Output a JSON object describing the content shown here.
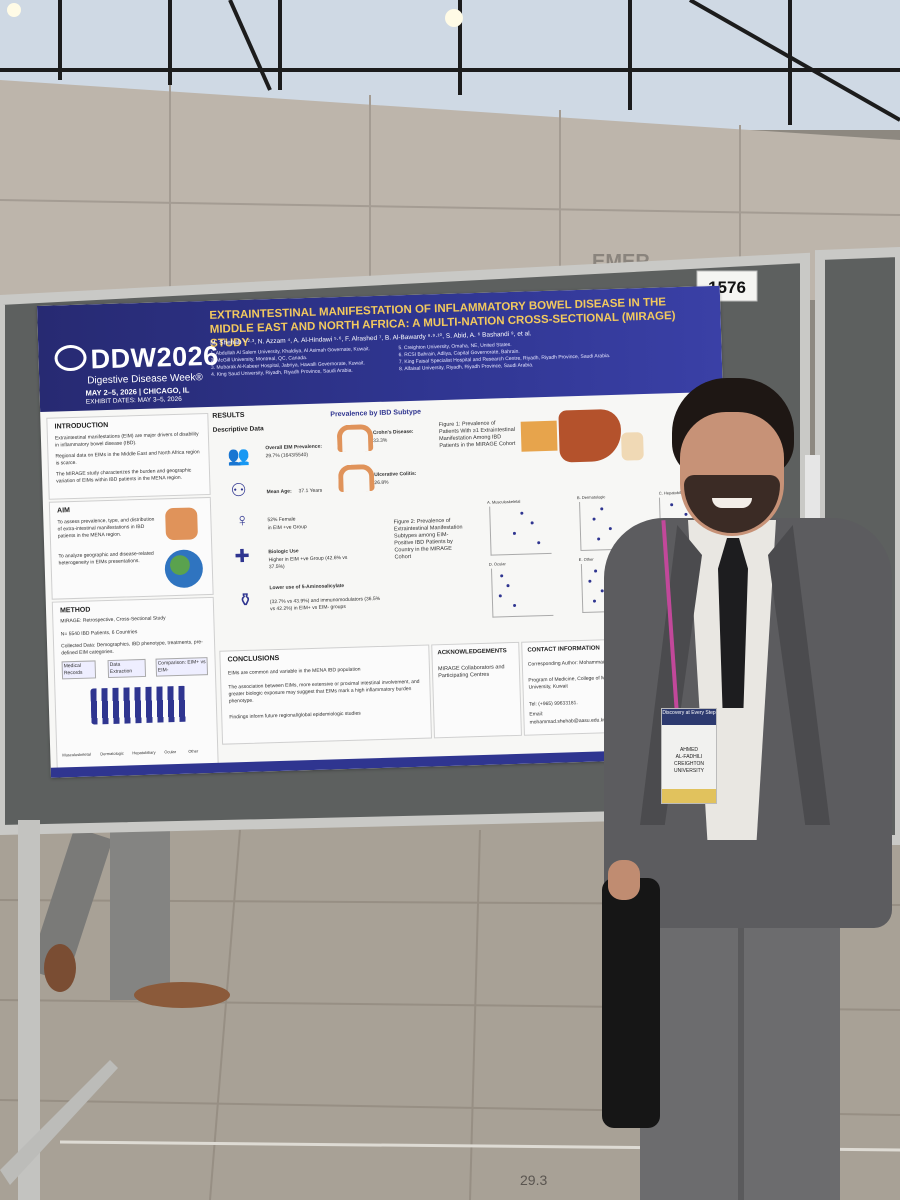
{
  "booth_number": "1576",
  "background_sign_fragment": "EMER",
  "floor_marking": "29.3",
  "badge": {
    "top": "Discovery at Every Step",
    "name": "AHMED",
    "line2": "AL-FADHILI",
    "org": "CREIGHTON UNIVERSITY"
  },
  "poster": {
    "logo_main": "DDW2026",
    "logo_sub": "Digestive Disease Week®",
    "conference_dates": "MAY 2–5, 2026 | CHICAGO, IL",
    "exhibit_dates": "EXHIBIT DATES: MAY 3–5, 2026",
    "title": "EXTRAINTESTINAL MANIFESTATION OF INFLAMMATORY BOWEL DISEASE IN THE MIDDLE EAST AND NORTH AFRICA: A MULTI-NATION CROSS-SECTIONAL (MIRAGE) STUDY",
    "authors": "M. Shehab ¹·²·³, N. Azzam ⁴, A. Al-Hindawi ⁵·⁶, F. Alrashed ⁷, B. Al-Bawardy ⁸·⁹·¹⁰, S. Abid, A. ⁶ Bashandi ⁹, et al.",
    "affiliations_left": "1. Abdullah Al Salem University, Khaldiya, Al Asimah Governate, Kuwait.\n2. McGill University, Montreal, QC, Canada.\n3. Mubarak Al-Kabeer Hospital, Jabriya, Hawalli Governorate, Kuwait.\n4. King Saud University, Riyadh, Riyadh Province, Saudi Arabia.",
    "affiliations_right": "5. Creighton University, Omaha, NE, United States.\n6. RCSI Bahrain, Adliya, Capital Governorate, Bahrain.\n7. King Faisal Specialist Hospital and Research Centre, Riyadh, Riyadh Province, Saudi Arabia.\n8. Alfaisal University, Riyadh, Riyadh Province, Saudi Arabia.",
    "introduction": {
      "heading": "INTRODUCTION",
      "bullets": [
        "Extraintestinal manifestations (EIM) are major drivers of disability in inflammatory bowel disease (IBD).",
        "Regional data on EIMs in the Middle East and North Africa region is scarce.",
        "The MIRAGE study characterizes the burden and geographic variation of EIMs within IBD patients in the MENA region."
      ]
    },
    "aim": {
      "heading": "AIM",
      "bullets": [
        "To assess prevalence, type, and distribution of extra-intestinal manifestations in IBD patients in the MENA region.",
        "To analyze geographic and disease-related heterogeneity in EIMs presentations."
      ]
    },
    "method": {
      "heading": "METHOD",
      "lines": [
        "MIRAGE: Retrospective, Cross-Sectional Study",
        "N= 5540 IBD Patients, 6 Countries",
        "Collected Data: Demographics, IBD phenotype, treatments, pre-defined EIM categories."
      ],
      "flow": [
        "Medical Records",
        "Data Extraction",
        "Comparison: EIM+ vs EIM-"
      ],
      "categories": [
        "Musculoskeletal",
        "Dermatologic",
        "Hepatobiliary",
        "Ocular",
        "Other"
      ]
    },
    "results": {
      "heading": "RESULTS",
      "descriptive_heading": "Descriptive Data",
      "items": [
        {
          "label": "Overall EIM Prevalence:",
          "value": "29.7% (1643/5540)"
        },
        {
          "label": "Mean Age:",
          "value": "37.1 Years"
        },
        {
          "label": "52% Female",
          "value": "in EIM +ve Group"
        },
        {
          "label": "Biologic Use",
          "value": "Higher in EIM +ve Group (42.6% vs 37.5%)"
        },
        {
          "label": "Lower use of 5-Aminosalicylate",
          "value": "(32.7% vs 43.9%) and immunomodulators (36.5% vs 42.2%) in EIM+ vs EIM- groups"
        }
      ],
      "subtype_heading": "Prevalence by IBD Subtype",
      "subtypes": [
        {
          "label": "Crohn's Disease:",
          "value": "33.3%"
        },
        {
          "label": "Ulcerative Colitis:",
          "value": "26.8%"
        }
      ],
      "figure1": "Figure 1: Prevalence of Patients With ≥1 Extraintestinal Manifestation Among IBD Patients in the MIRAGE Cohort",
      "figure2": "Figure 2: Prevalence of Extraintestinal Manifestation Subtypes among EIM-Positive IBD Patients by Country in the MIRAGE Cohort",
      "panels": [
        "A. Musculoskeletal",
        "B. Dermatologic",
        "C. Hepatobiliary",
        "D. Ocular",
        "E. Other"
      ]
    },
    "conclusions": {
      "heading": "CONCLUSIONS",
      "bullets": [
        "EIMs are common and variable in the MENA IBD population",
        "The association between EIMs, more extensive or proximal intestinal involvement, and greater biologic exposure may suggest that EIMs mark a high inflammatory burden phenotype.",
        "Findings inform future regional/global epidemiologic studies"
      ]
    },
    "acknowledgements": {
      "heading": "ACKNOWLEDGEMENTS",
      "text": "MIRAGE Collaborators and Participating Centres"
    },
    "contact": {
      "heading": "CONTACT INFORMATION",
      "author": "Corresponding Author: Mohammad Shehab",
      "dept": "Program of Medicine, College of Medicine and Health Sciences, Abdullah Al Salem University, Kuwait",
      "tel": "Tel: (+965) 99633181.",
      "email_label": "Email:",
      "email": "mohammad.shehab@aasu.edu.kw"
    }
  },
  "colors": {
    "poster_header": "#2f3590",
    "title_text": "#f2c95e",
    "accent_orange": "#e0935a",
    "board": "#5d605f"
  }
}
